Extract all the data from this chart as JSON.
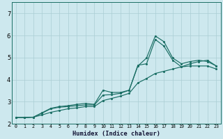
{
  "xlabel": "Humidex (Indice chaleur)",
  "bg_color": "#cde8ee",
  "line_color": "#1a6e64",
  "grid_color": "#aacdd4",
  "xlim": [
    -0.5,
    23.5
  ],
  "ylim": [
    2.0,
    7.5
  ],
  "xticks": [
    0,
    1,
    2,
    3,
    4,
    5,
    6,
    7,
    8,
    9,
    10,
    11,
    12,
    13,
    14,
    15,
    16,
    17,
    18,
    19,
    20,
    21,
    22,
    23
  ],
  "yticks": [
    2,
    3,
    4,
    5,
    6,
    7
  ],
  "series1_x": [
    0,
    1,
    2,
    3,
    4,
    5,
    6,
    7,
    8,
    9,
    10,
    11,
    12,
    13,
    14,
    15,
    16,
    17,
    18,
    19,
    20,
    21,
    22,
    23
  ],
  "series1_y": [
    2.28,
    2.28,
    2.3,
    2.48,
    2.68,
    2.75,
    2.78,
    2.82,
    2.85,
    2.85,
    3.3,
    3.32,
    3.38,
    3.52,
    4.65,
    4.72,
    5.82,
    5.52,
    4.88,
    4.58,
    4.62,
    4.62,
    4.62,
    4.48
  ],
  "series2_x": [
    0,
    1,
    2,
    3,
    4,
    5,
    6,
    7,
    8,
    9,
    10,
    11,
    12,
    13,
    14,
    15,
    16,
    17,
    18,
    19,
    20,
    21,
    22,
    23
  ],
  "series2_y": [
    2.28,
    2.28,
    2.3,
    2.5,
    2.7,
    2.78,
    2.82,
    2.88,
    2.92,
    2.88,
    3.52,
    3.42,
    3.42,
    3.52,
    4.62,
    4.98,
    5.98,
    5.72,
    4.98,
    4.72,
    4.82,
    4.88,
    4.82,
    4.62
  ],
  "series3_x": [
    0,
    1,
    2,
    3,
    4,
    5,
    6,
    7,
    8,
    9,
    10,
    11,
    12,
    13,
    14,
    15,
    16,
    17,
    18,
    19,
    20,
    21,
    22,
    23
  ],
  "series3_y": [
    2.28,
    2.28,
    2.3,
    2.4,
    2.52,
    2.6,
    2.68,
    2.72,
    2.78,
    2.78,
    3.05,
    3.15,
    3.25,
    3.38,
    3.85,
    4.05,
    4.28,
    4.38,
    4.48,
    4.58,
    4.72,
    4.82,
    4.88,
    4.62
  ]
}
